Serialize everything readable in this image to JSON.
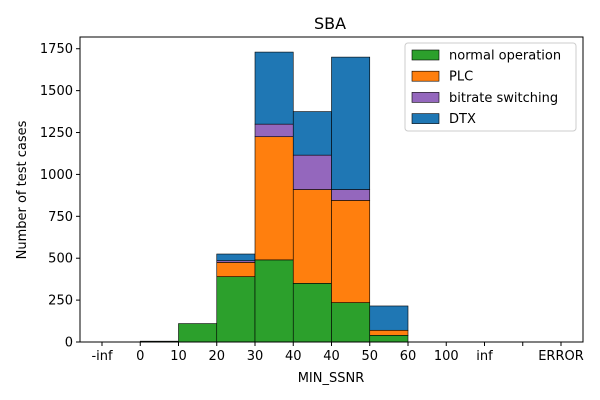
{
  "chart_data": {
    "type": "bar",
    "stacked": true,
    "title": "SBA",
    "xlabel": "MIN_SSNR",
    "ylabel": "Number of test cases",
    "ylim": [
      0,
      1820
    ],
    "yticks": [
      0,
      250,
      500,
      750,
      1000,
      1250,
      1500,
      1750
    ],
    "ytick_labels": [
      "0",
      "250",
      "500",
      "750",
      "1000",
      "1250",
      "1500",
      "1750"
    ],
    "xtick_labels": [
      "-inf",
      "0",
      "10",
      "20",
      "30",
      "40",
      "40",
      "50",
      "60",
      "100",
      "inf",
      "",
      "ERROR"
    ],
    "bins": [
      "-inf-0",
      "0-10",
      "10-20",
      "20-30",
      "30-40",
      "40-40",
      "40-50",
      "50-60",
      "60-100",
      "100-inf",
      "inf-",
      "-ERROR"
    ],
    "series": [
      {
        "name": "normal operation",
        "color": "#2ca02c",
        "values": [
          0,
          5,
          110,
          390,
          490,
          350,
          235,
          40,
          0,
          0,
          0,
          0
        ]
      },
      {
        "name": "PLC",
        "color": "#ff7f0e",
        "values": [
          0,
          0,
          0,
          85,
          735,
          560,
          610,
          30,
          0,
          0,
          0,
          0
        ]
      },
      {
        "name": "bitrate switching",
        "color": "#9467bd",
        "values": [
          0,
          0,
          0,
          10,
          75,
          205,
          65,
          0,
          0,
          0,
          0,
          0
        ]
      },
      {
        "name": "DTX",
        "color": "#1f77b4",
        "values": [
          0,
          0,
          0,
          40,
          430,
          260,
          790,
          145,
          0,
          0,
          0,
          0
        ]
      }
    ],
    "legend_position": "top-right",
    "grid": false
  }
}
